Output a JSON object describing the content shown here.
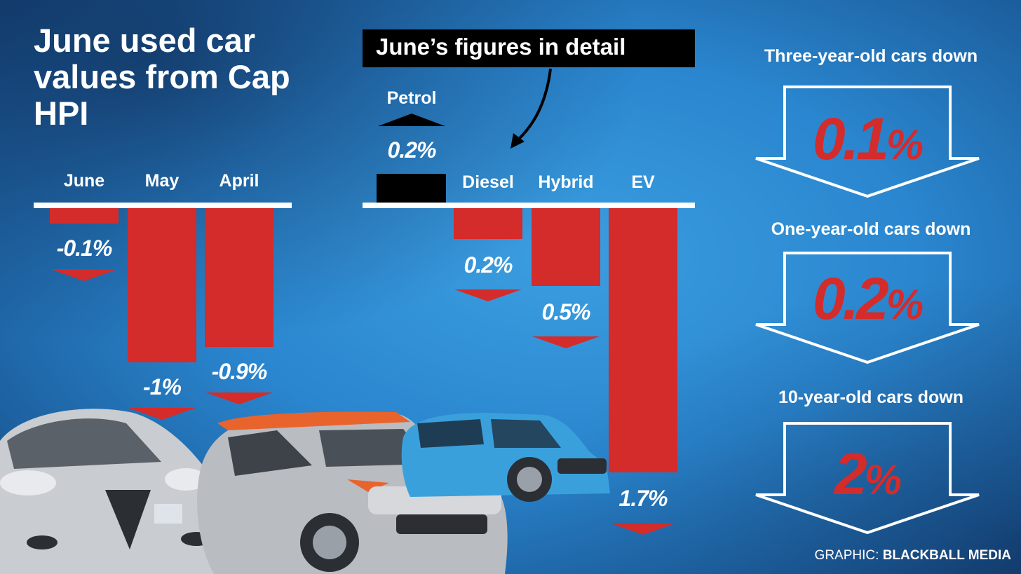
{
  "title": "June used car values from Cap HPI",
  "detail_heading": "June’s figures in detail",
  "credit": {
    "prefix": "GRAPHIC:",
    "brand": "BLACKBALL MEDIA"
  },
  "colors": {
    "bar": "#d42b2b",
    "background": "#2a86cf",
    "text": "#ffffff"
  },
  "chart_data": [
    {
      "type": "bar",
      "categories": [
        "June",
        "May",
        "April"
      ],
      "values": [
        -0.1,
        -1,
        -0.9
      ],
      "labels": [
        "-0.1%",
        "-1%",
        "-0.9%"
      ]
    },
    {
      "type": "bar",
      "categories": [
        "Petrol",
        "Diesel",
        "Hybrid",
        "EV"
      ],
      "values": [
        0.2,
        -0.2,
        -0.5,
        -1.7
      ],
      "labels": [
        "0.2%",
        "0.2%",
        "0.5%",
        "1.7%"
      ],
      "direction": [
        "up",
        "down",
        "down",
        "down"
      ]
    }
  ],
  "side_panels": [
    {
      "heading": "Three-year-old cars down",
      "value": "0.1",
      "unit": "%"
    },
    {
      "heading": "One-year-old cars down",
      "value": "0.2",
      "unit": "%"
    },
    {
      "heading": "10-year-old cars down",
      "value": "2",
      "unit": "%"
    }
  ]
}
